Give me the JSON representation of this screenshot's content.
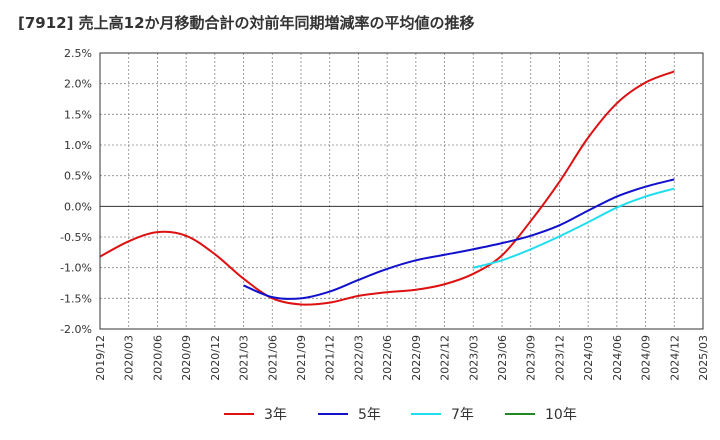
{
  "chart_data": {
    "type": "line",
    "title": "[7912]  売上高12か月移動合計の対前年同期増減率の平均値の推移",
    "xlabel": "",
    "ylabel": "",
    "x_ticks": [
      "2019/12",
      "2020/03",
      "2020/06",
      "2020/09",
      "2020/12",
      "2021/03",
      "2021/06",
      "2021/09",
      "2021/12",
      "2022/03",
      "2022/06",
      "2022/09",
      "2022/12",
      "2023/03",
      "2023/06",
      "2023/09",
      "2023/12",
      "2024/03",
      "2024/06",
      "2024/09",
      "2024/12",
      "2025/03"
    ],
    "y_ticks": [
      "2.5%",
      "2.0%",
      "1.5%",
      "1.0%",
      "0.5%",
      "0.0%",
      "-0.5%",
      "-1.0%",
      "-1.5%",
      "-2.0%"
    ],
    "ylim": [
      -2.0,
      2.5
    ],
    "grid": true,
    "legend_position": "bottom",
    "series": [
      {
        "name": "3年",
        "color": "#dd1111",
        "x": [
          "2019/12",
          "2020/03",
          "2020/06",
          "2020/09",
          "2020/12",
          "2021/03",
          "2021/06",
          "2021/09",
          "2021/12",
          "2022/03",
          "2022/06",
          "2022/09",
          "2022/12",
          "2023/03",
          "2023/06",
          "2023/09",
          "2023/12",
          "2024/03",
          "2024/06",
          "2024/09",
          "2024/12"
        ],
        "values": [
          -0.82,
          -0.57,
          -0.42,
          -0.48,
          -0.78,
          -1.18,
          -1.5,
          -1.6,
          -1.57,
          -1.46,
          -1.4,
          -1.36,
          -1.27,
          -1.1,
          -0.8,
          -0.24,
          0.4,
          1.12,
          1.68,
          2.02,
          2.2
        ]
      },
      {
        "name": "5年",
        "color": "#1111cc",
        "x": [
          "2021/03",
          "2021/06",
          "2021/09",
          "2021/12",
          "2022/03",
          "2022/06",
          "2022/09",
          "2022/12",
          "2023/03",
          "2023/06",
          "2023/09",
          "2023/12",
          "2024/03",
          "2024/06",
          "2024/09",
          "2024/12"
        ],
        "values": [
          -1.29,
          -1.48,
          -1.5,
          -1.39,
          -1.2,
          -1.02,
          -0.88,
          -0.79,
          -0.7,
          -0.6,
          -0.48,
          -0.31,
          -0.07,
          0.16,
          0.32,
          0.44
        ]
      },
      {
        "name": "7年",
        "color": "#22ddee",
        "x": [
          "2023/03",
          "2023/06",
          "2023/09",
          "2023/12",
          "2024/03",
          "2024/06",
          "2024/09",
          "2024/12"
        ],
        "values": [
          -1.0,
          -0.88,
          -0.7,
          -0.49,
          -0.26,
          -0.02,
          0.16,
          0.29
        ]
      },
      {
        "name": "10年",
        "color": "#228822",
        "x": [],
        "values": []
      }
    ]
  }
}
